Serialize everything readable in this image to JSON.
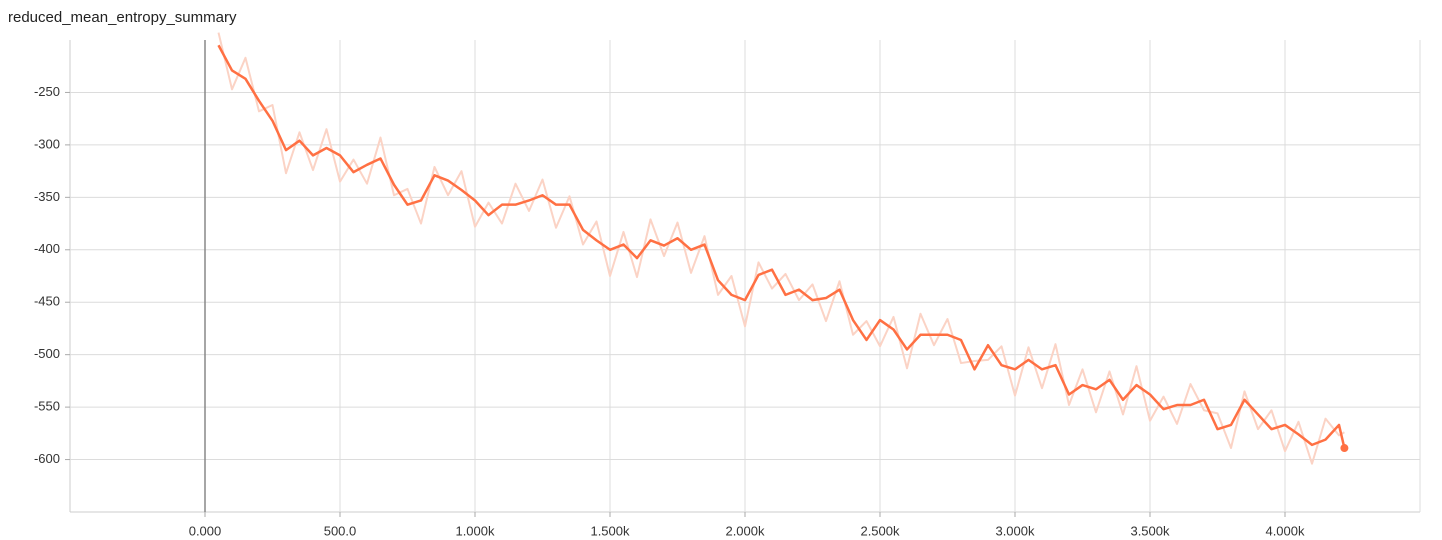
{
  "chart_data": {
    "type": "line",
    "title": "reduced_mean_entropy_summary",
    "x": [
      50,
      100,
      150,
      200,
      250,
      300,
      350,
      400,
      450,
      500,
      550,
      600,
      650,
      700,
      750,
      800,
      850,
      900,
      950,
      1000,
      1050,
      1100,
      1150,
      1200,
      1250,
      1300,
      1350,
      1400,
      1450,
      1500,
      1550,
      1600,
      1650,
      1700,
      1750,
      1800,
      1850,
      1900,
      1950,
      2000,
      2050,
      2100,
      2150,
      2200,
      2250,
      2300,
      2350,
      2400,
      2450,
      2500,
      2550,
      2600,
      2650,
      2700,
      2750,
      2800,
      2850,
      2900,
      2950,
      3000,
      3050,
      3100,
      3150,
      3200,
      3250,
      3300,
      3350,
      3400,
      3450,
      3500,
      3550,
      3600,
      3650,
      3700,
      3750,
      3800,
      3850,
      3900,
      3950,
      4000,
      4050,
      4100,
      4150,
      4200,
      4220
    ],
    "series": [
      {
        "color": "#fbd3c5",
        "values": [
          -193,
          -247,
          -217,
          -268,
          -262,
          -327,
          -288,
          -324,
          -285,
          -335,
          -314,
          -337,
          -293,
          -348,
          -342,
          -375,
          -321,
          -348,
          -325,
          -378,
          -355,
          -375,
          -337,
          -363,
          -333,
          -379,
          -349,
          -395,
          -373,
          -425,
          -383,
          -426,
          -371,
          -406,
          -374,
          -422,
          -387,
          -443,
          -425,
          -473,
          -412,
          -437,
          -423,
          -448,
          -433,
          -468,
          -430,
          -481,
          -468,
          -492,
          -464,
          -513,
          -461,
          -491,
          -466,
          -508,
          -506,
          -505,
          -492,
          -539,
          -493,
          -532,
          -490,
          -548,
          -514,
          -555,
          -516,
          -557,
          -511,
          -563,
          -540,
          -566,
          -528,
          -553,
          -556,
          -589,
          -535,
          -571,
          -553,
          -592,
          -564,
          -604,
          -561,
          -577,
          -574
        ]
      },
      {
        "color": "#ff7043",
        "values": [
          -205,
          -229,
          -237,
          -258,
          -277,
          -305,
          -296,
          -310,
          -303,
          -310,
          -326,
          -319,
          -313,
          -338,
          -357,
          -353,
          -329,
          -334,
          -343,
          -353,
          -367,
          -357,
          -357,
          -353,
          -348,
          -357,
          -357,
          -381,
          -391,
          -400,
          -395,
          -408,
          -391,
          -396,
          -389,
          -400,
          -395,
          -429,
          -443,
          -448,
          -424,
          -419,
          -443,
          -438,
          -448,
          -446,
          -438,
          -467,
          -486,
          -467,
          -476,
          -495,
          -481,
          -481,
          -481,
          -486,
          -514,
          -491,
          -510,
          -514,
          -505,
          -514,
          -510,
          -538,
          -529,
          -533,
          -524,
          -543,
          -529,
          -538,
          -552,
          -548,
          -548,
          -543,
          -571,
          -567,
          -543,
          -557,
          -571,
          -567,
          -576,
          -586,
          -581,
          -567,
          -589
        ]
      }
    ],
    "xlim": [
      -500,
      4500
    ],
    "ylim": [
      -650,
      -200
    ],
    "xticks": [
      {
        "value": 0,
        "label": "0.000"
      },
      {
        "value": 500,
        "label": "500.0"
      },
      {
        "value": 1000,
        "label": "1.000k"
      },
      {
        "value": 1500,
        "label": "1.500k"
      },
      {
        "value": 2000,
        "label": "2.000k"
      },
      {
        "value": 2500,
        "label": "2.500k"
      },
      {
        "value": 3000,
        "label": "3.000k"
      },
      {
        "value": 3500,
        "label": "3.500k"
      },
      {
        "value": 4000,
        "label": "4.000k"
      }
    ],
    "yticks": [
      -250,
      -300,
      -350,
      -400,
      -450,
      -500,
      -550,
      -600
    ],
    "grid": true
  }
}
